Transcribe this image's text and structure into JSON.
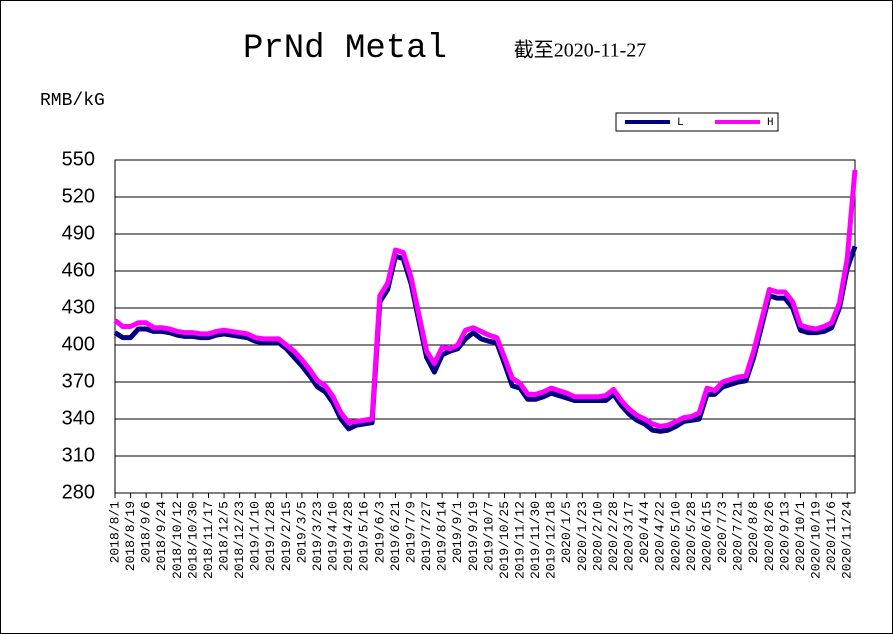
{
  "chart_data": {
    "type": "line",
    "title": "PrNd Metal",
    "subtitle": "截至2020-11-27",
    "y_label": "RMB/kG",
    "categories": [
      "2018/8/1",
      null,
      "2018/8/19",
      null,
      "2018/9/6",
      null,
      "2018/9/24",
      null,
      "2018/10/12",
      null,
      "2018/10/30",
      null,
      "2018/11/17",
      null,
      "2018/12/5",
      null,
      "2018/12/23",
      null,
      "2019/1/10",
      null,
      "2019/1/28",
      null,
      "2019/2/15",
      null,
      "2019/3/5",
      null,
      "2019/3/23",
      null,
      "2019/4/10",
      null,
      "2019/4/28",
      null,
      "2019/5/16",
      null,
      "2019/6/3",
      null,
      "2019/6/21",
      null,
      "2019/7/9",
      null,
      "2019/7/27",
      null,
      "2019/8/14",
      null,
      "2019/9/1",
      null,
      "2019/9/19",
      null,
      "2019/10/7",
      null,
      "2019/10/25",
      null,
      "2019/11/12",
      null,
      "2019/11/30",
      null,
      "2019/12/18",
      null,
      "2020/1/5",
      null,
      "2020/1/23",
      null,
      "2020/2/10",
      null,
      "2020/2/28",
      null,
      "2020/3/17",
      null,
      "2020/4/4",
      null,
      "2020/4/22",
      null,
      "2020/5/10",
      null,
      "2020/5/28",
      null,
      "2020/6/15",
      null,
      "2020/7/3",
      null,
      "2020/7/21",
      null,
      "2020/8/8",
      null,
      "2020/8/26",
      null,
      "2020/9/13",
      null,
      "2020/10/1",
      null,
      "2020/10/19",
      null,
      "2020/11/6",
      null,
      "2020/11/24",
      null
    ],
    "series": [
      {
        "name": "L",
        "color": "#000080",
        "values": [
          410,
          406,
          406,
          413,
          413,
          411,
          411,
          410,
          408,
          407,
          407,
          406,
          406,
          408,
          409,
          408,
          407,
          406,
          403,
          402,
          402,
          402,
          397,
          390,
          383,
          375,
          366,
          362,
          353,
          340,
          332,
          335,
          336,
          337,
          435,
          445,
          472,
          470,
          450,
          420,
          390,
          378,
          392,
          395,
          397,
          405,
          410,
          405,
          403,
          402,
          385,
          367,
          365,
          356,
          356,
          358,
          361,
          359,
          357,
          355,
          355,
          355,
          355,
          355,
          360,
          351,
          344,
          339,
          336,
          331,
          330,
          331,
          334,
          338,
          339,
          340,
          360,
          360,
          366,
          368,
          370,
          371,
          390,
          415,
          440,
          438,
          438,
          430,
          412,
          410,
          410,
          411,
          414,
          430,
          462,
          480
        ]
      },
      {
        "name": "H",
        "color": "#ff00ff",
        "values": [
          420,
          415,
          415,
          418,
          418,
          414,
          414,
          413,
          411,
          410,
          410,
          409,
          409,
          411,
          412,
          411,
          410,
          409,
          406,
          405,
          405,
          405,
          400,
          395,
          388,
          380,
          371,
          367,
          358,
          345,
          337,
          338,
          339,
          340,
          440,
          450,
          477,
          475,
          455,
          425,
          395,
          385,
          398,
          397,
          400,
          412,
          414,
          411,
          408,
          406,
          390,
          373,
          369,
          360,
          360,
          362,
          365,
          363,
          361,
          358,
          358,
          358,
          358,
          359,
          364,
          355,
          348,
          343,
          340,
          336,
          334,
          335,
          338,
          341,
          342,
          345,
          365,
          363,
          370,
          372,
          374,
          375,
          395,
          420,
          445,
          443,
          443,
          435,
          416,
          414,
          413,
          415,
          418,
          434,
          470,
          542
        ]
      }
    ],
    "ylim": [
      280,
      550
    ],
    "yticks": [
      280,
      310,
      340,
      370,
      400,
      430,
      460,
      490,
      520,
      550
    ],
    "grid": true
  }
}
